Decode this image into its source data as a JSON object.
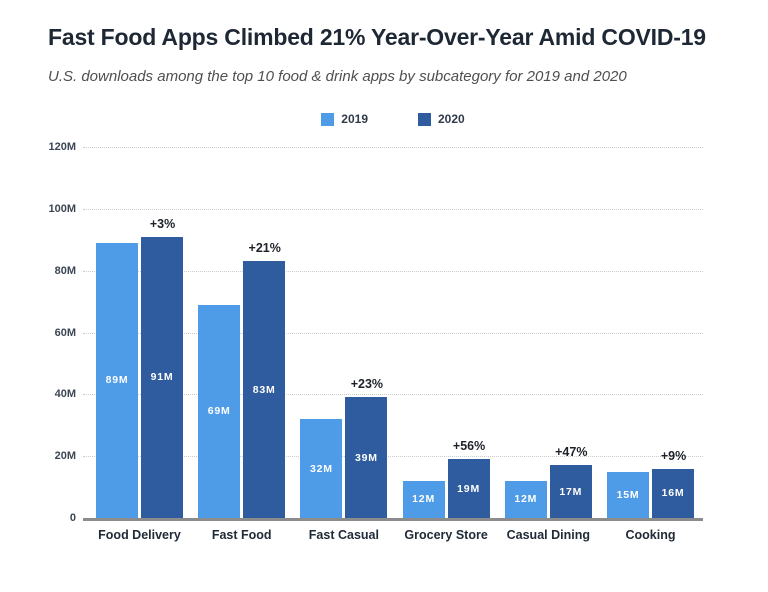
{
  "chart_data": {
    "type": "bar",
    "title": "Fast Food Apps Climbed 21% Year-Over-Year Amid COVID-19",
    "subtitle": "U.S. downloads among the top 10 food & drink apps by subcategory for 2019 and 2020",
    "categories": [
      "Food Delivery",
      "Fast Food",
      "Fast Casual",
      "Grocery Store",
      "Casual Dining",
      "Cooking"
    ],
    "series": [
      {
        "name": "2019",
        "color": "#4E9CE8",
        "values": [
          89,
          69,
          32,
          12,
          12,
          15
        ],
        "value_labels": [
          "89M",
          "69M",
          "32M",
          "12M",
          "12M",
          "15M"
        ]
      },
      {
        "name": "2020",
        "color": "#2E5C9E",
        "values": [
          91,
          83,
          39,
          19,
          17,
          16
        ],
        "value_labels": [
          "91M",
          "83M",
          "39M",
          "19M",
          "17M",
          "16M"
        ]
      }
    ],
    "yoy_annotations": [
      "+3%",
      "+21%",
      "+23%",
      "+56%",
      "+47%",
      "+9%"
    ],
    "ylabel": "",
    "xlabel": "",
    "unit": "M downloads",
    "ylim": [
      0,
      120
    ],
    "yticks": [
      0,
      20,
      40,
      60,
      80,
      100,
      120
    ],
    "ytick_labels": [
      "0",
      "20M",
      "40M",
      "60M",
      "80M",
      "100M",
      "120M"
    ],
    "grid": "horizontal-dotted",
    "legend_position": "top-center",
    "colors": {
      "grid": "#cbcbcb",
      "axis": "#8c8c8c",
      "title": "#1e2834",
      "subtitle": "#4f4f4f",
      "value_label": "#ffffff",
      "annotation": "#1d222a"
    }
  }
}
